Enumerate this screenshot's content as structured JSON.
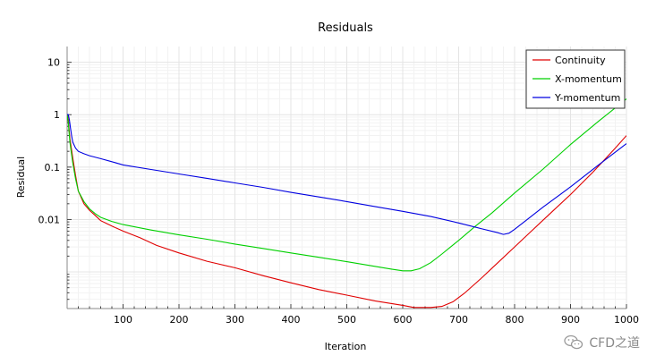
{
  "chart_data": {
    "type": "line",
    "title": "Residuals",
    "xlabel": "Iteration",
    "ylabel": "Residual",
    "xlim": [
      0,
      1000
    ],
    "ylim": [
      0.0002,
      20
    ],
    "y_scale": "log",
    "x_ticks": [
      100,
      200,
      300,
      400,
      500,
      600,
      700,
      800,
      900,
      1000
    ],
    "y_ticks": [
      {
        "value": 10,
        "label": "10"
      },
      {
        "value": 1,
        "label": "1"
      },
      {
        "value": 0.1,
        "label": "0.1"
      },
      {
        "value": 0.01,
        "label": "0.01"
      }
    ],
    "grid": true,
    "legend_position": "top-right",
    "series": [
      {
        "name": "Continuity",
        "color": "#e00000",
        "x": [
          0,
          2,
          5,
          10,
          15,
          20,
          30,
          40,
          50,
          60,
          80,
          100,
          130,
          160,
          200,
          250,
          300,
          350,
          400,
          450,
          500,
          550,
          600,
          620,
          650,
          670,
          690,
          710,
          740,
          770,
          800,
          830,
          860,
          900,
          940,
          980,
          1000
        ],
        "y": [
          1.0,
          0.8,
          0.35,
          0.15,
          0.07,
          0.035,
          0.02,
          0.015,
          0.012,
          0.0095,
          0.0075,
          0.006,
          0.0045,
          0.0032,
          0.0023,
          0.0016,
          0.0012,
          0.00085,
          0.00062,
          0.00046,
          0.00036,
          0.00028,
          0.00023,
          0.00021,
          0.00021,
          0.00022,
          0.00027,
          0.00039,
          0.00075,
          0.0015,
          0.003,
          0.006,
          0.012,
          0.03,
          0.08,
          0.23,
          0.4
        ]
      },
      {
        "name": "X-momentum",
        "color": "#00d000",
        "x": [
          0,
          2,
          5,
          10,
          15,
          20,
          30,
          40,
          50,
          60,
          80,
          100,
          150,
          200,
          250,
          300,
          350,
          400,
          450,
          500,
          550,
          580,
          600,
          615,
          630,
          650,
          670,
          700,
          730,
          760,
          800,
          850,
          900,
          950,
          1000
        ],
        "y": [
          1.0,
          0.7,
          0.3,
          0.12,
          0.06,
          0.035,
          0.022,
          0.016,
          0.013,
          0.011,
          0.0092,
          0.008,
          0.0063,
          0.0051,
          0.0042,
          0.0034,
          0.0028,
          0.0023,
          0.0019,
          0.00157,
          0.00128,
          0.00113,
          0.00105,
          0.00105,
          0.00115,
          0.0015,
          0.0022,
          0.004,
          0.0075,
          0.0135,
          0.032,
          0.09,
          0.27,
          0.75,
          2.0
        ]
      },
      {
        "name": "Y-momentum",
        "color": "#0000e0",
        "x": [
          0,
          2,
          4,
          6,
          8,
          10,
          15,
          20,
          30,
          40,
          60,
          80,
          100,
          150,
          200,
          250,
          300,
          350,
          400,
          450,
          500,
          550,
          600,
          650,
          700,
          740,
          770,
          780,
          790,
          800,
          820,
          850,
          900,
          950,
          1000
        ],
        "y": [
          1.0,
          1.0,
          0.8,
          0.55,
          0.4,
          0.3,
          0.23,
          0.2,
          0.18,
          0.165,
          0.145,
          0.127,
          0.11,
          0.09,
          0.074,
          0.061,
          0.05,
          0.041,
          0.033,
          0.027,
          0.022,
          0.0177,
          0.0143,
          0.0114,
          0.0086,
          0.0067,
          0.0056,
          0.0052,
          0.0055,
          0.0065,
          0.0095,
          0.017,
          0.042,
          0.11,
          0.28
        ]
      }
    ]
  },
  "watermark": {
    "text": "CFD之道",
    "icon": "wechat-icon"
  }
}
